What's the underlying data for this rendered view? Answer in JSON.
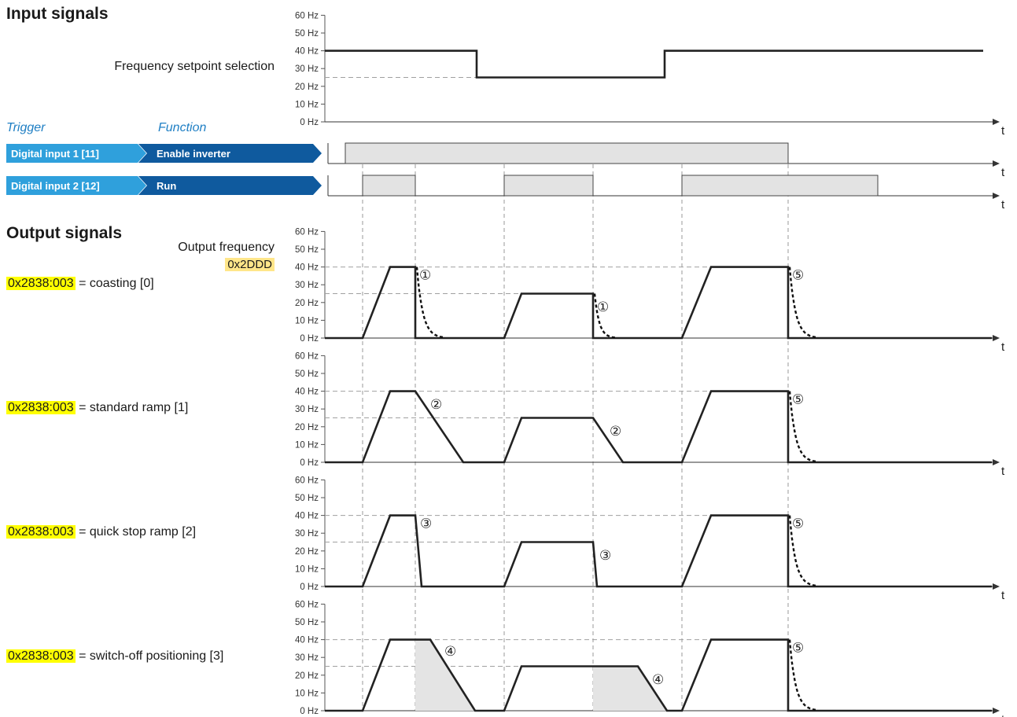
{
  "headings": {
    "input_signals": "Input signals",
    "output_signals": "Output signals",
    "trigger": "Trigger",
    "function": "Function"
  },
  "input_panel": {
    "label": "Frequency setpoint selection",
    "y_ticks": [
      "60 Hz",
      "50 Hz",
      "40 Hz",
      "30 Hz",
      "20 Hz",
      "10 Hz",
      "0 Hz"
    ],
    "axis_label": "t",
    "setpoint_values_hz": [
      40,
      25,
      40
    ]
  },
  "triggers": [
    {
      "trigger": "Digital input 1 [11]",
      "function": "Enable inverter",
      "axis_label": "t"
    },
    {
      "trigger": "Digital input 2 [12]",
      "function": "Run",
      "axis_label": "t"
    }
  ],
  "output_header": {
    "signal": "Output frequency",
    "code": "0x2DDD"
  },
  "output_panels": [
    {
      "code": "0x2838:003",
      "label": "= coasting [0]",
      "markers": [
        "①",
        "①",
        "⑤"
      ]
    },
    {
      "code": "0x2838:003",
      "label": "= standard ramp [1]",
      "markers": [
        "②",
        "②",
        "⑤"
      ]
    },
    {
      "code": "0x2838:003",
      "label": "= quick stop ramp [2]",
      "markers": [
        "③",
        "③",
        "⑤"
      ]
    },
    {
      "code": "0x2838:003",
      "label": "= switch-off positioning [3]",
      "markers": [
        "④",
        "④",
        "⑤"
      ]
    }
  ],
  "output_y_ticks": [
    "60 Hz",
    "50 Hz",
    "40 Hz",
    "30 Hz",
    "20 Hz",
    "10 Hz",
    "0 Hz"
  ],
  "axis_label": "t",
  "colors": {
    "trigger_chip": "#2fa0dc",
    "function_chip": "#0f5a9e",
    "pulse_fill": "#e3e3e3",
    "code_highlight": "#ffff00",
    "code_box": "#ffe68a"
  }
}
